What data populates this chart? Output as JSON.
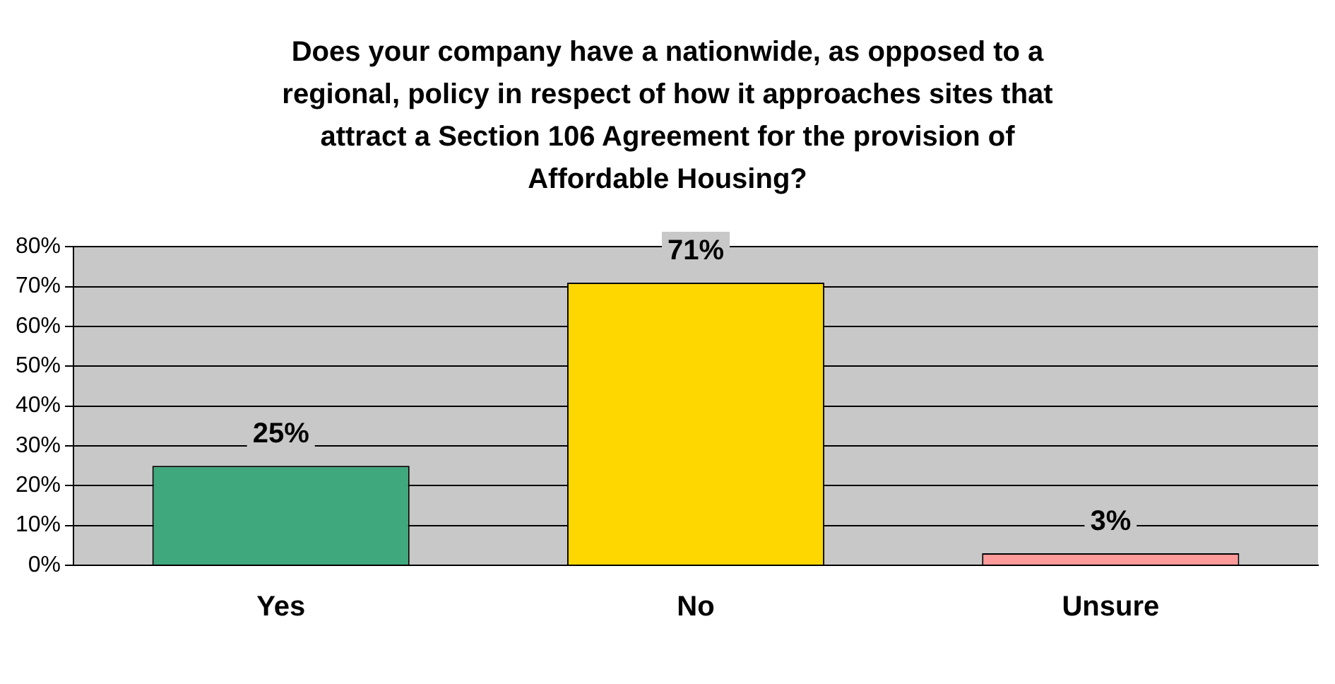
{
  "chart_data": {
    "type": "bar",
    "title": "Does your company have a nationwide, as opposed to a regional, policy in respect of how it approaches sites that attract a Section 106 Agreement for the provision of Affordable Housing?",
    "categories": [
      "Yes",
      "No",
      "Unsure"
    ],
    "values": [
      25,
      71,
      3
    ],
    "colors": [
      "#3fa87c",
      "#ffd700",
      "#ff9a9a"
    ],
    "value_labels": [
      "25%",
      "71%",
      "3%"
    ],
    "ylim": [
      0,
      80
    ],
    "yticks": [
      {
        "value": 0,
        "label": "0%"
      },
      {
        "value": 10,
        "label": "10%"
      },
      {
        "value": 20,
        "label": "20%"
      },
      {
        "value": 30,
        "label": "30%"
      },
      {
        "value": 40,
        "label": "40%"
      },
      {
        "value": 50,
        "label": "50%"
      },
      {
        "value": 60,
        "label": "60%"
      },
      {
        "value": 70,
        "label": "70%"
      },
      {
        "value": 80,
        "label": "80%"
      }
    ],
    "grid": "y",
    "legend": false
  }
}
